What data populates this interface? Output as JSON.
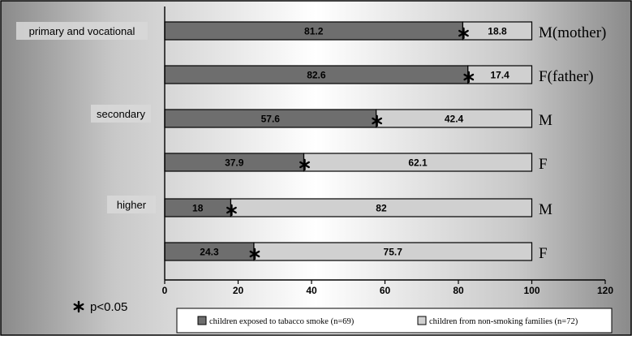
{
  "chart_data": {
    "type": "bar",
    "stacked": true,
    "orientation": "horizontal",
    "title": "",
    "xlabel": "",
    "ylabel": "",
    "xlim": [
      0,
      120
    ],
    "x_ticks": [
      "0",
      "20",
      "40",
      "60",
      "80",
      "100",
      "120"
    ],
    "grid": false,
    "legend_position": "bottom",
    "group_labels": [
      "primary and vocational",
      "secondary",
      "higher"
    ],
    "categories": [
      "M(mother)",
      "F(father)",
      "M",
      "F",
      "M",
      "F"
    ],
    "series": [
      {
        "name": "children exposed to tabacco smoke (n=69)",
        "color": "#6e6e6e",
        "values": [
          81.2,
          82.6,
          57.6,
          37.9,
          18,
          24.3
        ],
        "labels": [
          "81.2",
          "82.6",
          "57.6",
          "37.9",
          "18",
          "24.3"
        ]
      },
      {
        "name": "children from non-smoking families (n=72)",
        "color": "#d0d0d0",
        "values": [
          18.8,
          17.4,
          42.4,
          62.1,
          82,
          75.7
        ],
        "labels": [
          "18.8",
          "17.4",
          "42.4",
          "62.1",
          "82",
          "75.7"
        ]
      }
    ],
    "significance_note": "p<0.05"
  }
}
